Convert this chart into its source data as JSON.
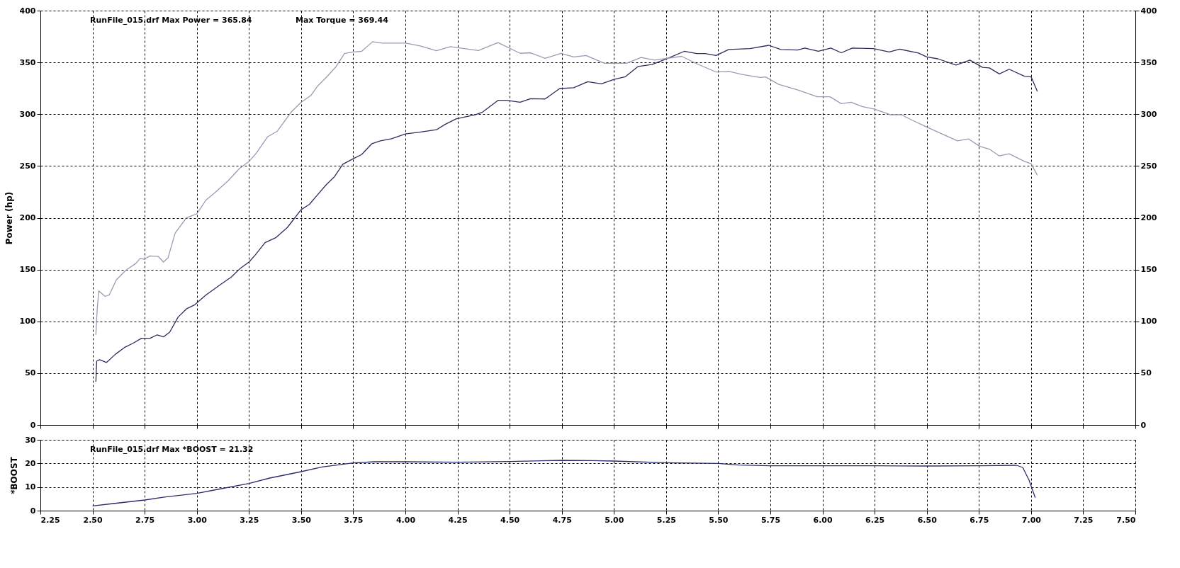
{
  "chart_data": [
    {
      "type": "line",
      "ylabel": "Power (hp)",
      "annotations": [
        "RunFile_015.drf Max Power = 365.84",
        "Max Torque = 369.44"
      ],
      "grid": true,
      "tick_labels": "y",
      "xlim": [
        2.25,
        7.5
      ],
      "ylim": [
        0,
        400
      ],
      "y2lim": [
        0,
        400
      ],
      "xticks": [
        {
          "value": 2.25,
          "label": null
        },
        {
          "value": 2.5,
          "label": null
        },
        {
          "value": 2.75,
          "label": null
        },
        {
          "value": 3.0,
          "label": null
        },
        {
          "value": 3.25,
          "label": null
        },
        {
          "value": 3.5,
          "label": null
        },
        {
          "value": 3.75,
          "label": null
        },
        {
          "value": 4.0,
          "label": null
        },
        {
          "value": 4.25,
          "label": null
        },
        {
          "value": 4.5,
          "label": null
        },
        {
          "value": 4.75,
          "label": null
        },
        {
          "value": 5.0,
          "label": null
        },
        {
          "value": 5.25,
          "label": null
        },
        {
          "value": 5.5,
          "label": null
        },
        {
          "value": 5.75,
          "label": null
        },
        {
          "value": 6.0,
          "label": null
        },
        {
          "value": 6.25,
          "label": null
        },
        {
          "value": 6.5,
          "label": null
        },
        {
          "value": 6.75,
          "label": null
        },
        {
          "value": 7.0,
          "label": null
        },
        {
          "value": 7.25,
          "label": null
        },
        {
          "value": 7.5,
          "label": null
        }
      ],
      "yticks": [
        0,
        50,
        100,
        150,
        200,
        250,
        300,
        350,
        400
      ],
      "y2ticks": [
        0,
        50,
        100,
        150,
        200,
        250,
        300,
        350,
        400
      ],
      "series": [
        {
          "color": "#2b2d5e",
          "x": [
            2.516,
            2.52,
            2.534,
            2.567,
            2.61,
            2.655,
            2.695,
            2.735,
            2.776,
            2.81,
            2.84,
            2.87,
            2.91,
            2.95,
            2.99,
            3.044,
            3.11,
            3.165,
            3.206,
            3.25,
            3.28,
            3.327,
            3.38,
            3.434,
            3.5,
            3.54,
            3.58,
            3.62,
            3.66,
            3.7,
            3.75,
            3.79,
            3.84,
            3.88,
            3.934,
            4.0,
            4.068,
            4.149,
            4.189,
            4.243,
            4.337,
            4.37,
            4.444,
            4.485,
            4.55,
            4.6,
            4.67,
            4.74,
            4.807,
            4.874,
            4.94,
            5.0,
            5.055,
            5.115,
            5.182,
            5.25,
            5.337,
            5.397,
            5.437,
            5.49,
            5.55,
            5.652,
            5.743,
            5.8,
            5.88,
            5.915,
            5.98,
            6.04,
            6.09,
            6.143,
            6.244,
            6.32,
            6.37,
            6.46,
            6.5,
            6.553,
            6.64,
            6.707,
            6.767,
            6.8,
            6.848,
            6.895,
            6.968,
            7.0,
            7.03
          ],
          "values": [
            41.7,
            61.7,
            63,
            60.3,
            68.3,
            75,
            79,
            83.7,
            83.7,
            87,
            85,
            89.6,
            104,
            112,
            116,
            125.5,
            135,
            142.7,
            150.7,
            157.3,
            164,
            176,
            181,
            190.6,
            207.8,
            213,
            222.5,
            231.8,
            239.7,
            251.7,
            257,
            261,
            271.6,
            274.3,
            276.4,
            281,
            282.6,
            285,
            290,
            295.5,
            299.5,
            302,
            313.4,
            313.4,
            311.5,
            315,
            314.7,
            324.8,
            325.6,
            331.4,
            329.3,
            333.6,
            336.2,
            346,
            347.9,
            353.2,
            360.7,
            358.5,
            358.5,
            356.7,
            362.5,
            363.3,
            366.5,
            362.5,
            362,
            363.8,
            360.7,
            363.8,
            359.3,
            363.8,
            363.3,
            360.1,
            362.8,
            359,
            355.3,
            353.5,
            347.4,
            352.2,
            345.2,
            344.7,
            338.9,
            343.4,
            336.7,
            336.2,
            322.1
          ]
        },
        {
          "color": "#9a9ab5",
          "x": [
            2.516,
            2.523,
            2.53,
            2.56,
            2.58,
            2.614,
            2.66,
            2.708,
            2.728,
            2.748,
            2.775,
            2.815,
            2.84,
            2.862,
            2.896,
            2.95,
            3.0,
            3.044,
            3.084,
            3.15,
            3.205,
            3.25,
            3.285,
            3.34,
            3.386,
            3.453,
            3.5,
            3.547,
            3.58,
            3.62,
            3.668,
            3.708,
            3.75,
            3.79,
            3.843,
            3.89,
            3.93,
            4.0,
            4.068,
            4.149,
            4.216,
            4.35,
            4.444,
            4.55,
            4.6,
            4.67,
            4.746,
            4.807,
            4.867,
            4.954,
            5.06,
            5.13,
            5.195,
            5.325,
            5.397,
            5.49,
            5.55,
            5.61,
            5.7,
            5.727,
            5.79,
            5.88,
            5.975,
            6.036,
            6.09,
            6.137,
            6.19,
            6.25,
            6.324,
            6.378,
            6.43,
            6.5,
            6.573,
            6.647,
            6.7,
            6.754,
            6.8,
            6.848,
            6.895,
            6.968,
            7.0,
            7.03
          ],
          "values": [
            86.9,
            113.5,
            129.4,
            124.1,
            125.5,
            140,
            149.4,
            156,
            160.8,
            160,
            163.2,
            162.7,
            157.3,
            161.3,
            185.2,
            199.9,
            203.9,
            217.1,
            223.8,
            235.7,
            247.7,
            254.4,
            262.3,
            278.3,
            283.6,
            302.2,
            311.5,
            318.1,
            327.4,
            335.4,
            346,
            358.5,
            360.1,
            360.7,
            370,
            368.6,
            368.6,
            368.6,
            366,
            361.2,
            365.2,
            361.5,
            369.2,
            358.8,
            359.3,
            354,
            358.8,
            355.3,
            356.7,
            349.2,
            349.2,
            354.8,
            352.2,
            355.9,
            348.7,
            340.7,
            341.5,
            338.6,
            335.4,
            336,
            328.8,
            323.5,
            316.8,
            316.8,
            310.2,
            311.5,
            307.5,
            304.9,
            299.5,
            299.5,
            294.2,
            287.6,
            280.9,
            274.3,
            276.1,
            269,
            266.3,
            259.7,
            261.8,
            254.4,
            252.2,
            241.1
          ]
        }
      ]
    },
    {
      "type": "line",
      "ylabel": "*BOOST",
      "annotations": [
        "RunFile_015.drf Max *BOOST = 21.32"
      ],
      "grid": true,
      "xlim": [
        2.25,
        7.5
      ],
      "ylim": [
        0,
        30
      ],
      "xticks": [
        {
          "value": 2.25,
          "label": "2.25"
        },
        {
          "value": 2.5,
          "label": "2.50"
        },
        {
          "value": 2.75,
          "label": "2.75"
        },
        {
          "value": 3.0,
          "label": "3.00"
        },
        {
          "value": 3.25,
          "label": "3.25"
        },
        {
          "value": 3.5,
          "label": "3.50"
        },
        {
          "value": 3.75,
          "label": "3.75"
        },
        {
          "value": 4.0,
          "label": "4.00"
        },
        {
          "value": 4.25,
          "label": "4.25"
        },
        {
          "value": 4.5,
          "label": "4.50"
        },
        {
          "value": 4.75,
          "label": "4.75"
        },
        {
          "value": 5.0,
          "label": "5.00"
        },
        {
          "value": 5.25,
          "label": "5.25"
        },
        {
          "value": 5.5,
          "label": "5.50"
        },
        {
          "value": 5.75,
          "label": "5.75"
        },
        {
          "value": 6.0,
          "label": "6.00"
        },
        {
          "value": 6.25,
          "label": "6.25"
        },
        {
          "value": 6.5,
          "label": "6.50"
        },
        {
          "value": 6.75,
          "label": "6.75"
        },
        {
          "value": 7.0,
          "label": "7.00"
        },
        {
          "value": 7.25,
          "label": "7.25"
        },
        {
          "value": 7.5,
          "label": "7.50"
        }
      ],
      "yticks": [
        0,
        10,
        20,
        30
      ],
      "series": [
        {
          "color": "#2b2d6e",
          "x": [
            2.5,
            2.6,
            2.75,
            2.85,
            3.0,
            3.1,
            3.25,
            3.35,
            3.5,
            3.6,
            3.75,
            3.85,
            4.0,
            4.25,
            4.5,
            4.75,
            4.9,
            5.0,
            5.25,
            5.5,
            5.6,
            5.75,
            6.0,
            6.25,
            6.5,
            6.75,
            6.93,
            6.96,
            6.99,
            7.02
          ],
          "values": [
            2,
            3,
            4.5,
            5.8,
            7.3,
            9,
            11.5,
            13.8,
            16.5,
            18.5,
            20.2,
            20.7,
            20.7,
            20.5,
            20.8,
            21.3,
            21.2,
            21,
            20.3,
            20,
            19.3,
            19,
            19,
            19,
            18.9,
            19,
            19.2,
            18.3,
            13,
            5.5
          ]
        }
      ]
    }
  ]
}
